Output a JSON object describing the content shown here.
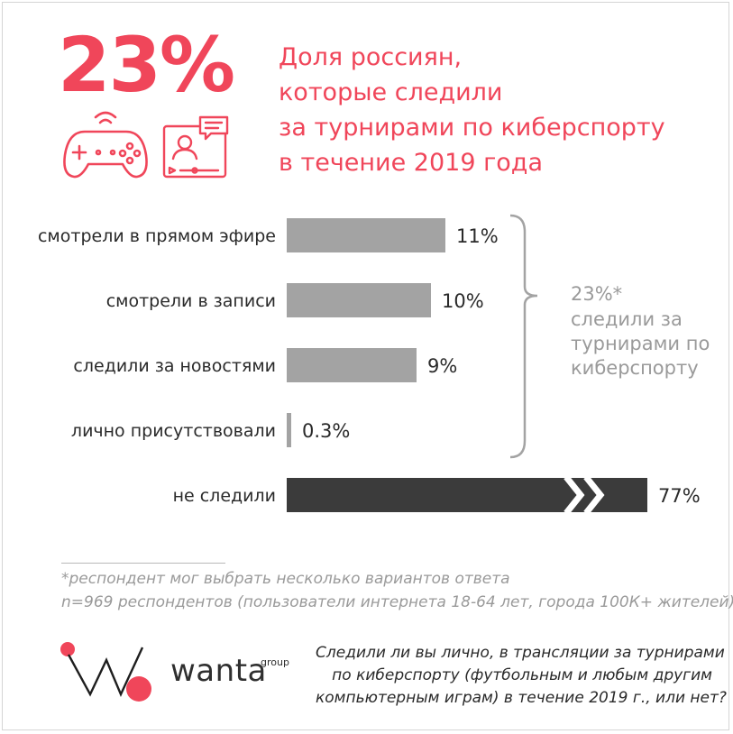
{
  "big_stat": "23%",
  "title_lines": [
    "Доля россиян,",
    "которые следили",
    "за турнирами по киберспорту",
    "в течение 2019 года"
  ],
  "colors": {
    "accent": "#f0465a",
    "bar_gray": "#a3a3a3",
    "bar_dark": "#3b3b3b",
    "text": "#2a2a2a",
    "muted": "#9a9a9a"
  },
  "icons": [
    "gamepad-icon",
    "video-streaming-icon"
  ],
  "chart_data": {
    "type": "bar",
    "orientation": "horizontal",
    "categories": [
      "смотрели в прямом эфире",
      "смотрели в записи",
      "следили за новостями",
      "лично присутствовали",
      "не следили"
    ],
    "values": [
      11,
      10,
      9,
      0.3,
      77
    ],
    "value_labels": [
      "11%",
      "10%",
      "9%",
      "0.3%",
      "77%"
    ],
    "unit": "%",
    "xlim": [
      0,
      100
    ],
    "grid": false,
    "truncated_bar_index": 4,
    "bracket_annotation": {
      "title": "23%*",
      "lines": [
        "следили за",
        "турнирами по",
        "киберспорту"
      ]
    }
  },
  "footnotes": [
    "*респондент мог выбрать несколько вариантов ответа",
    "n=969 респондентов (пользователи интернета 18-64 лет, города 100К+ жителей)"
  ],
  "brand": {
    "name": "wanta",
    "suffix": "group"
  },
  "question_lines": [
    "Следили ли вы лично, в трансляции за турнирами",
    "по киберспорту (футбольным и любым другим",
    "компьютерным играм) в течение 2019 г., или нет?"
  ]
}
